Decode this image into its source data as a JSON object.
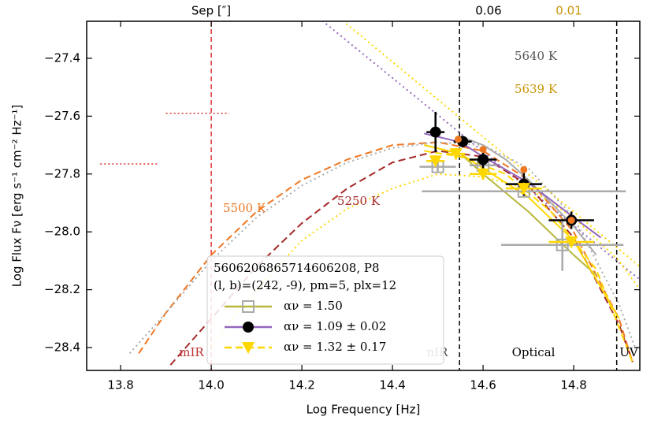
{
  "chart_data": {
    "type": "scatter",
    "xlabel": "Log Frequency [Hz]",
    "ylabel": "Log Flux Fν [erg s⁻¹ cm⁻² Hz⁻¹]",
    "xlim": [
      13.725,
      14.946
    ],
    "ylim": [
      -28.479,
      -27.272
    ],
    "xticks": [
      13.8,
      {
        "value": 14,
        "label": "14.0"
      },
      14.2,
      14.4,
      14.6,
      14.8
    ],
    "yticks": [
      {
        "value": -27.4,
        "label": "−27.4"
      },
      {
        "value": -27.6,
        "label": "−27.6"
      },
      {
        "value": -27.8,
        "label": "−27.8"
      },
      {
        "value": -28,
        "label": "−28.0"
      },
      {
        "value": -28.2,
        "label": "−28.2"
      },
      {
        "value": -28.4,
        "label": "−28.4"
      }
    ],
    "vlines": [
      {
        "x": 14,
        "color": "#e03030"
      },
      {
        "x": 14.548,
        "color": "#000000"
      },
      {
        "x": 14.895,
        "color": "#000000"
      }
    ],
    "regions": [
      "mIR",
      "nIR",
      "Optical",
      "UV"
    ],
    "top_labels": [
      {
        "text": "Sep [″]",
        "color": "#000000"
      },
      {
        "text": "0.06",
        "color": "#000000"
      },
      {
        "text": "0.01",
        "color": "#c8960a"
      }
    ],
    "temp_labels": [
      {
        "text": "5500 K",
        "color": "#ee7722"
      },
      {
        "text": "5250 K",
        "color": "#a52a2a"
      },
      {
        "text": "5640 K",
        "color": "#555555"
      },
      {
        "text": "5639 K",
        "color": "#c8960a"
      }
    ],
    "legend_title": [
      "5606206865714606208, P8",
      "(l, b)=(242, -9), pm=5, plx=12"
    ],
    "red_dotted": [
      {
        "x": [
          13.755,
          13.885
        ],
        "y": -27.765
      },
      {
        "x": [
          13.9,
          14.04
        ],
        "y": -27.59
      }
    ],
    "curves": [
      {
        "color": "#9467bd",
        "dash": "dotted",
        "x": [
          14.245,
          14.946
        ],
        "y": [
          -27.27,
          -28.165
        ]
      },
      {
        "color": "#ffd700",
        "dash": "dotted",
        "x": [
          14.29,
          14.946
        ],
        "y": [
          -27.27,
          -28.12
        ]
      },
      {
        "color": "#ee7722",
        "dash": "dashed",
        "x": [
          13.84,
          13.9,
          14.0,
          14.1,
          14.2,
          14.3,
          14.4,
          14.5,
          14.6,
          14.7,
          14.8,
          14.9,
          14.93
        ],
        "y": [
          -28.42,
          -28.28,
          -28.08,
          -27.93,
          -27.82,
          -27.75,
          -27.7,
          -27.69,
          -27.72,
          -27.82,
          -28.0,
          -28.3,
          -28.45
        ]
      },
      {
        "color": "#a52a2a",
        "dash": "dashed",
        "x": [
          13.91,
          14.0,
          14.1,
          14.2,
          14.3,
          14.4,
          14.5,
          14.6,
          14.7,
          14.8,
          14.9,
          14.93
        ],
        "y": [
          -28.46,
          -28.3,
          -28.12,
          -27.97,
          -27.85,
          -27.76,
          -27.72,
          -27.74,
          -27.84,
          -28.02,
          -28.32,
          -28.45
        ]
      },
      {
        "color": "#aaaaaa",
        "dash": "dotted",
        "x": [
          13.82,
          13.9,
          14.0,
          14.1,
          14.2,
          14.3,
          14.4,
          14.5,
          14.6,
          14.7,
          14.8,
          14.9,
          14.94
        ],
        "y": [
          -28.42,
          -28.28,
          -28.1,
          -27.95,
          -27.84,
          -27.76,
          -27.71,
          -27.69,
          -27.7,
          -27.78,
          -27.95,
          -28.25,
          -28.42
        ]
      },
      {
        "color": "#ffd700",
        "dash": "dotted",
        "x": [
          14.0,
          14.1,
          14.2,
          14.3,
          14.4,
          14.5,
          14.6,
          14.7,
          14.8,
          14.9,
          14.946
        ],
        "y": [
          -28.39,
          -28.2,
          -28.03,
          -27.92,
          -27.85,
          -27.8,
          -27.81,
          -27.85,
          -27.95,
          -28.1,
          -28.2
        ]
      },
      {
        "color": "#aaaaaa",
        "dash": "solid",
        "x": [
          14.55,
          14.6,
          14.65,
          14.7,
          14.8,
          14.85
        ],
        "y": [
          -27.67,
          -27.7,
          -27.75,
          -27.82,
          -27.98,
          -28.08
        ]
      },
      {
        "color": "#b5b83a",
        "dash": "solid",
        "x": [
          14.47,
          14.55,
          14.6,
          14.7,
          14.8,
          14.85
        ],
        "y": [
          -27.7,
          -27.73,
          -27.8,
          -27.93,
          -28.08,
          -28.15
        ]
      },
      {
        "color": "#ffd700",
        "dash": "solid",
        "x": [
          14.47,
          14.55,
          14.6,
          14.7,
          14.8,
          14.9
        ],
        "y": [
          -27.7,
          -27.73,
          -27.78,
          -27.88,
          -28.03,
          -28.3
        ]
      },
      {
        "color": "#ffd700",
        "dash": "dashed",
        "x": [
          14.47,
          14.55,
          14.65,
          14.75,
          14.85,
          14.93
        ],
        "y": [
          -27.72,
          -27.74,
          -27.8,
          -27.93,
          -28.13,
          -28.45
        ]
      },
      {
        "color": "#9467bd",
        "dash": "solid",
        "x": [
          14.47,
          14.55,
          14.6,
          14.7,
          14.8,
          14.86
        ],
        "y": [
          -27.66,
          -27.69,
          -27.74,
          -27.83,
          -27.95,
          -28.02
        ]
      }
    ],
    "series": [
      {
        "name": "αν = 1.50",
        "color": "#aaaaaa",
        "line_color": "#b5b83a",
        "marker": "square",
        "x": [
          14.5,
          14.6,
          14.69,
          14.775
        ],
        "values": [
          -27.775,
          -27.77,
          -27.86,
          -28.045
        ],
        "xerr": [
          0.04,
          0.03,
          0.225,
          0.135
        ],
        "yerr": [
          0.02,
          0.03,
          0.02,
          0.09
        ]
      },
      {
        "name": "αν = 1.09 ± 0.02",
        "color": "#000000",
        "line_color": "#9467bd",
        "marker": "circle",
        "x": [
          14.495,
          14.555,
          14.6,
          14.69,
          14.795
        ],
        "values": [
          -27.655,
          -27.688,
          -27.75,
          -27.835,
          -27.96
        ],
        "xerr": [
          0.02,
          0.02,
          0.03,
          0.04,
          0.05
        ],
        "yerr": [
          0.07,
          0.02,
          0.04,
          0.04,
          0.03
        ]
      },
      {
        "name": "αν = 1.32 ± 0.17",
        "color": "#ffd700",
        "line_color": "#ffd700",
        "marker": "triangle",
        "x": [
          14.495,
          14.54,
          14.6,
          14.69,
          14.795
        ],
        "values": [
          -27.755,
          -27.73,
          -27.8,
          -27.85,
          -28.035
        ],
        "xerr": [
          0.02,
          0.02,
          0.03,
          0.04,
          0.05
        ],
        "yerr": [
          0.02,
          0.02,
          0.02,
          0.02,
          0.02
        ]
      }
    ],
    "extra_points": {
      "color": "#ee7722",
      "x": [
        14.545,
        14.6,
        14.69,
        14.795
      ],
      "values": [
        -27.68,
        -27.715,
        -27.785,
        -27.96
      ]
    }
  }
}
